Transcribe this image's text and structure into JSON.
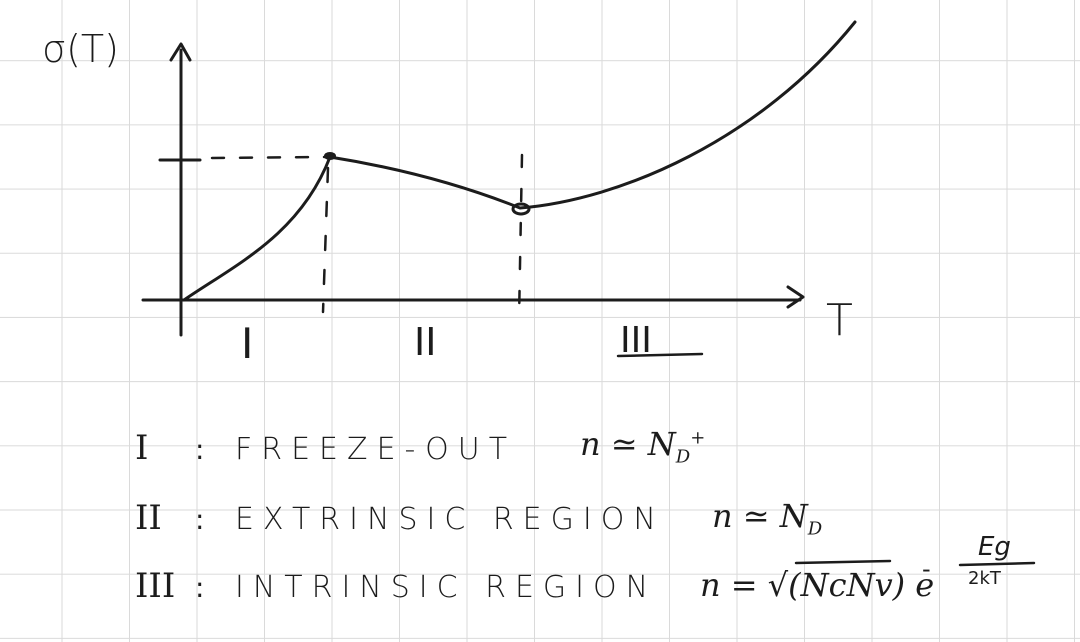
{
  "axes": {
    "y_label": "σ(T)",
    "x_label": "T"
  },
  "regions": [
    {
      "numeral": "I"
    },
    {
      "numeral": "II"
    },
    {
      "numeral": "III"
    }
  ],
  "legend": [
    {
      "numeral": "I",
      "colon": ":",
      "name": "FREEZE-OUT",
      "relation": "n ≃ N",
      "sub": "D",
      "sup": "+"
    },
    {
      "numeral": "II",
      "colon": ":",
      "name": "EXTRINSIC REGION",
      "relation": "n ≃ N",
      "sub": "D",
      "sup": ""
    },
    {
      "numeral": "III",
      "colon": ":",
      "name": "INTRINSIC REGION",
      "relation": "n = √(NcNv) e",
      "sub": "",
      "sup": ""
    }
  ],
  "exponent": {
    "numerator": "Eg",
    "denominator": "2kT",
    "sign": "-"
  }
}
